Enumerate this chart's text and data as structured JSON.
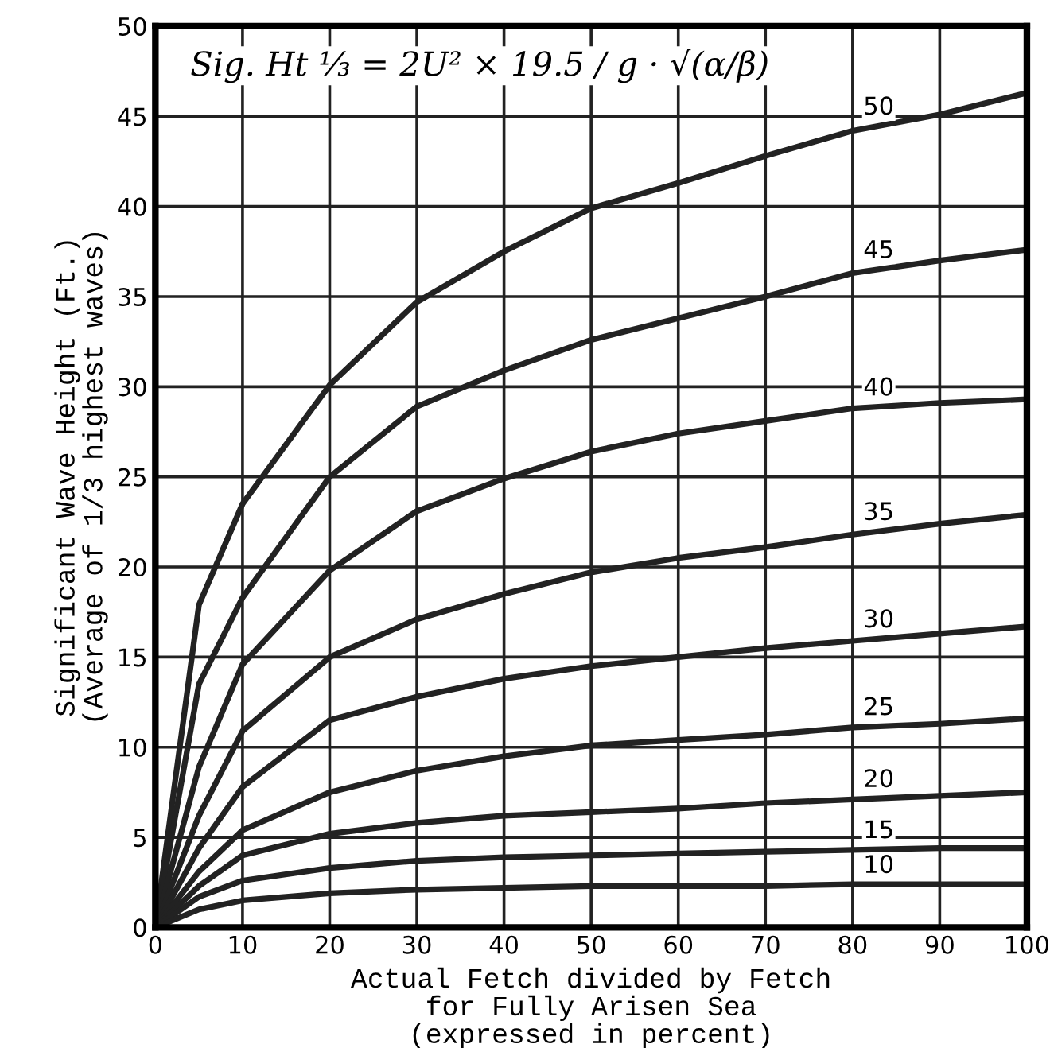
{
  "chart_data": {
    "type": "line",
    "xlabel": "Actual Fetch divided by Fetch\nfor Fully Arisen Sea\n(expressed in percent)",
    "ylabel": "Significant Wave Height (Ft.)\n(Average of 1/3 highest waves)",
    "x": [
      0,
      5,
      10,
      20,
      30,
      40,
      50,
      60,
      70,
      80,
      90,
      100
    ],
    "series": [
      {
        "name": "50",
        "color": "#222222",
        "values": [
          0,
          17.9,
          23.5,
          30.1,
          34.7,
          37.5,
          39.9,
          41.3,
          42.8,
          44.2,
          45.1,
          46.3
        ]
      },
      {
        "name": "45",
        "color": "#222222",
        "values": [
          0,
          13.5,
          18.3,
          25.0,
          28.9,
          30.9,
          32.6,
          33.8,
          35.0,
          36.3,
          37.0,
          37.6
        ]
      },
      {
        "name": "40",
        "color": "#222222",
        "values": [
          0,
          8.9,
          14.6,
          19.8,
          23.1,
          24.9,
          26.4,
          27.4,
          28.1,
          28.8,
          29.1,
          29.3
        ]
      },
      {
        "name": "35",
        "color": "#222222",
        "values": [
          0,
          6.2,
          10.9,
          15.0,
          17.1,
          18.5,
          19.7,
          20.5,
          21.1,
          21.8,
          22.4,
          22.9
        ]
      },
      {
        "name": "30",
        "color": "#222222",
        "values": [
          0,
          4.4,
          7.8,
          11.5,
          12.8,
          13.8,
          14.5,
          15.0,
          15.5,
          15.9,
          16.3,
          16.7
        ]
      },
      {
        "name": "25",
        "color": "#222222",
        "values": [
          0,
          3.1,
          5.4,
          7.5,
          8.7,
          9.5,
          10.1,
          10.4,
          10.7,
          11.1,
          11.3,
          11.6
        ]
      },
      {
        "name": "20",
        "color": "#222222",
        "values": [
          0,
          2.3,
          4.0,
          5.2,
          5.8,
          6.2,
          6.4,
          6.6,
          6.9,
          7.1,
          7.3,
          7.5
        ]
      },
      {
        "name": "15",
        "color": "#222222",
        "values": [
          0,
          1.7,
          2.6,
          3.3,
          3.7,
          3.9,
          4.0,
          4.1,
          4.2,
          4.3,
          4.4,
          4.4
        ]
      },
      {
        "name": "10",
        "color": "#222222",
        "values": [
          0,
          1.0,
          1.5,
          1.9,
          2.1,
          2.2,
          2.3,
          2.3,
          2.3,
          2.4,
          2.4,
          2.4
        ]
      }
    ],
    "xlim": [
      0,
      100
    ],
    "ylim": [
      0,
      50
    ],
    "xticks": [
      0,
      10,
      20,
      30,
      40,
      50,
      60,
      70,
      80,
      90,
      100
    ],
    "yticks": [
      0,
      5,
      10,
      15,
      20,
      25,
      30,
      35,
      40,
      45,
      50
    ],
    "grid": true,
    "legend": false,
    "marker": "none",
    "line_style": "solid",
    "annotations": [
      "Sig. Ht ⅓ = 2U² × 19.5 / g · √(α/β)"
    ]
  }
}
